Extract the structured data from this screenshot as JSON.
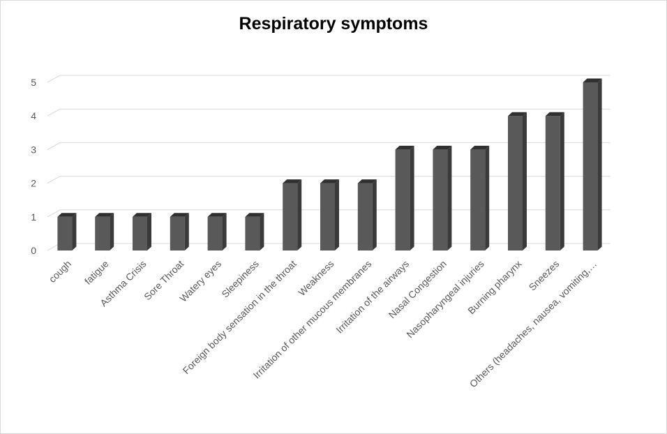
{
  "chart_data": {
    "type": "bar",
    "title": "Respiratory symptoms",
    "categories": [
      "cough",
      "fatigue",
      "Asthma Crisis",
      "Sore Throat",
      "Watery eyes",
      "Sleepiness",
      "Foreign body sensation in the throat",
      "Weakness",
      "Irritation of other mucous membranes",
      "Irritation of the airways",
      "Nasal Congestion",
      "Nasopharyngeal injuries",
      "Burning pharynx",
      "Sneezes",
      "Others (headaches, nausea, vomiting,…"
    ],
    "values": [
      1,
      1,
      1,
      1,
      1,
      1,
      2,
      2,
      2,
      3,
      3,
      3,
      4,
      4,
      5
    ],
    "ylim": [
      0,
      5
    ],
    "yticks": [
      0,
      1,
      2,
      3,
      4,
      5
    ],
    "grid": true,
    "legend": "none",
    "colors": {
      "bar_front": "#595959",
      "bar_side": "#3a3a3a",
      "bar_top": "#303030",
      "grid": "#d9d9d9",
      "text": "#595959"
    }
  }
}
